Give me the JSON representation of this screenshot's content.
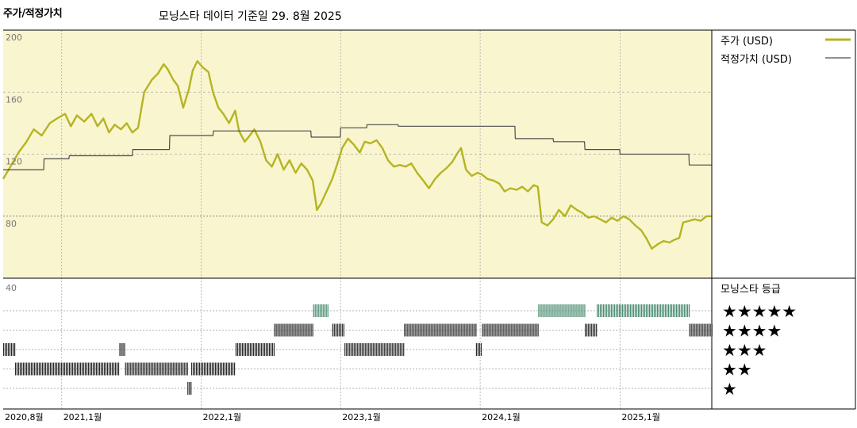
{
  "header": {
    "title": "주가/적정가치",
    "subtitle": "모닝스타 데이터 기준일 29. 8월 2025"
  },
  "colors": {
    "price_line": "#b5b423",
    "fair_value_line": "#4d4d4d",
    "upper_panel_bg": "#f9f5cf",
    "five_star_bar": "#4a8c70",
    "other_star_bar": "#2a2a2a"
  },
  "chart_data": {
    "type": "line",
    "y_ticks": [
      "200",
      "160",
      "120",
      "80",
      "40"
    ],
    "ylim": [
      40,
      200
    ],
    "date_labels": [
      "2020,8월",
      "2021,1월",
      "2022,1월",
      "2023,1월",
      "2024,1월",
      "2025,1월"
    ],
    "legend": {
      "price_label": "주가 (USD)",
      "fair_value_label": "적정가치 (USD)"
    },
    "series": [
      {
        "name": "주가 (USD)",
        "points": [
          [
            "2020-08-01",
            104
          ],
          [
            "2020-08-20",
            112
          ],
          [
            "2020-09-10",
            121
          ],
          [
            "2020-10-01",
            128
          ],
          [
            "2020-10-20",
            136
          ],
          [
            "2020-11-10",
            132
          ],
          [
            "2020-12-01",
            140
          ],
          [
            "2020-12-20",
            143
          ],
          [
            "2021-01-10",
            146
          ],
          [
            "2021-01-25",
            138
          ],
          [
            "2021-02-10",
            145
          ],
          [
            "2021-03-01",
            141
          ],
          [
            "2021-03-20",
            146
          ],
          [
            "2021-04-05",
            138
          ],
          [
            "2021-04-20",
            143
          ],
          [
            "2021-05-05",
            134
          ],
          [
            "2021-05-20",
            139
          ],
          [
            "2021-06-05",
            136
          ],
          [
            "2021-06-20",
            140
          ],
          [
            "2021-07-05",
            134
          ],
          [
            "2021-07-20",
            137
          ],
          [
            "2021-08-05",
            160
          ],
          [
            "2021-08-25",
            168
          ],
          [
            "2021-09-10",
            172
          ],
          [
            "2021-09-25",
            178
          ],
          [
            "2021-10-05",
            175
          ],
          [
            "2021-10-20",
            168
          ],
          [
            "2021-11-01",
            164
          ],
          [
            "2021-11-15",
            150
          ],
          [
            "2021-11-30",
            162
          ],
          [
            "2021-12-10",
            174
          ],
          [
            "2021-12-22",
            180
          ],
          [
            "2022-01-05",
            176
          ],
          [
            "2022-01-20",
            173
          ],
          [
            "2022-02-01",
            160
          ],
          [
            "2022-02-15",
            150
          ],
          [
            "2022-02-28",
            146
          ],
          [
            "2022-03-15",
            140
          ],
          [
            "2022-03-31",
            148
          ],
          [
            "2022-04-10",
            135
          ],
          [
            "2022-04-25",
            128
          ],
          [
            "2022-05-05",
            131
          ],
          [
            "2022-05-20",
            136
          ],
          [
            "2022-06-05",
            128
          ],
          [
            "2022-06-20",
            116
          ],
          [
            "2022-07-05",
            112
          ],
          [
            "2022-07-20",
            120
          ],
          [
            "2022-08-05",
            110
          ],
          [
            "2022-08-20",
            116
          ],
          [
            "2022-09-05",
            108
          ],
          [
            "2022-09-20",
            114
          ],
          [
            "2022-10-05",
            110
          ],
          [
            "2022-10-20",
            103
          ],
          [
            "2022-10-31",
            84
          ],
          [
            "2022-11-10",
            88
          ],
          [
            "2022-11-25",
            96
          ],
          [
            "2022-12-10",
            104
          ],
          [
            "2022-12-25",
            115
          ],
          [
            "2023-01-05",
            124
          ],
          [
            "2023-01-20",
            130
          ],
          [
            "2023-02-05",
            126
          ],
          [
            "2023-02-20",
            121
          ],
          [
            "2023-03-05",
            128
          ],
          [
            "2023-03-20",
            127
          ],
          [
            "2023-04-05",
            129
          ],
          [
            "2023-04-20",
            124
          ],
          [
            "2023-05-05",
            116
          ],
          [
            "2023-05-20",
            112
          ],
          [
            "2023-06-05",
            113
          ],
          [
            "2023-06-20",
            112
          ],
          [
            "2023-07-05",
            114
          ],
          [
            "2023-07-20",
            108
          ],
          [
            "2023-08-05",
            103
          ],
          [
            "2023-08-20",
            98
          ],
          [
            "2023-09-05",
            104
          ],
          [
            "2023-09-20",
            108
          ],
          [
            "2023-10-05",
            111
          ],
          [
            "2023-10-20",
            115
          ],
          [
            "2023-11-01",
            120
          ],
          [
            "2023-11-12",
            124
          ],
          [
            "2023-11-25",
            110
          ],
          [
            "2023-12-10",
            106
          ],
          [
            "2023-12-25",
            108
          ],
          [
            "2024-01-05",
            107
          ],
          [
            "2024-01-20",
            104
          ],
          [
            "2024-02-05",
            103
          ],
          [
            "2024-02-20",
            101
          ],
          [
            "2024-03-05",
            96
          ],
          [
            "2024-03-20",
            98
          ],
          [
            "2024-04-05",
            97
          ],
          [
            "2024-04-20",
            99
          ],
          [
            "2024-05-05",
            96
          ],
          [
            "2024-05-20",
            100
          ],
          [
            "2024-05-31",
            99
          ],
          [
            "2024-06-10",
            76
          ],
          [
            "2024-06-25",
            74
          ],
          [
            "2024-07-10",
            78
          ],
          [
            "2024-07-25",
            84
          ],
          [
            "2024-08-10",
            80
          ],
          [
            "2024-08-25",
            87
          ],
          [
            "2024-09-10",
            84
          ],
          [
            "2024-09-25",
            82
          ],
          [
            "2024-10-10",
            79
          ],
          [
            "2024-10-25",
            80
          ],
          [
            "2024-11-10",
            78
          ],
          [
            "2024-11-25",
            76
          ],
          [
            "2024-12-10",
            79
          ],
          [
            "2024-12-25",
            77
          ],
          [
            "2025-01-10",
            80
          ],
          [
            "2025-01-25",
            78
          ],
          [
            "2025-02-10",
            74
          ],
          [
            "2025-02-25",
            71
          ],
          [
            "2025-03-10",
            66
          ],
          [
            "2025-03-25",
            59
          ],
          [
            "2025-04-10",
            62
          ],
          [
            "2025-04-25",
            64
          ],
          [
            "2025-05-10",
            63
          ],
          [
            "2025-05-25",
            65
          ],
          [
            "2025-06-05",
            66
          ],
          [
            "2025-06-15",
            76
          ],
          [
            "2025-07-01",
            77
          ],
          [
            "2025-07-15",
            78
          ],
          [
            "2025-07-31",
            77
          ],
          [
            "2025-08-15",
            80
          ],
          [
            "2025-08-29",
            80
          ]
        ]
      },
      {
        "name": "적정가치 (USD)",
        "points": [
          [
            "2020-08-01",
            110
          ],
          [
            "2020-11-15",
            110
          ],
          [
            "2020-11-16",
            117
          ],
          [
            "2021-01-20",
            117
          ],
          [
            "2021-01-21",
            119
          ],
          [
            "2021-07-05",
            119
          ],
          [
            "2021-07-06",
            123
          ],
          [
            "2021-10-10",
            123
          ],
          [
            "2021-10-11",
            132
          ],
          [
            "2022-02-01",
            132
          ],
          [
            "2022-02-02",
            135
          ],
          [
            "2022-03-31",
            135
          ],
          [
            "2022-04-01",
            135
          ],
          [
            "2022-10-15",
            135
          ],
          [
            "2022-10-16",
            131
          ],
          [
            "2022-12-31",
            131
          ],
          [
            "2023-01-01",
            137
          ],
          [
            "2023-03-10",
            137
          ],
          [
            "2023-03-11",
            139
          ],
          [
            "2023-05-31",
            139
          ],
          [
            "2023-06-01",
            138
          ],
          [
            "2024-04-01",
            138
          ],
          [
            "2024-04-02",
            130
          ],
          [
            "2024-07-10",
            130
          ],
          [
            "2024-07-11",
            128
          ],
          [
            "2024-09-30",
            128
          ],
          [
            "2024-10-01",
            123
          ],
          [
            "2024-12-31",
            123
          ],
          [
            "2025-01-01",
            120
          ],
          [
            "2025-06-30",
            120
          ],
          [
            "2025-07-01",
            113
          ],
          [
            "2025-08-29",
            113
          ]
        ]
      }
    ],
    "star_rating": {
      "title": "모닝스타 등급",
      "labels": [
        "★★★★★",
        "★★★★",
        "★★★",
        "★★",
        "★"
      ],
      "periods": [
        {
          "start": "2020-08-01",
          "end": "2020-08-31",
          "stars": 3
        },
        {
          "start": "2020-09-01",
          "end": "2021-05-31",
          "stars": 2
        },
        {
          "start": "2021-06-01",
          "end": "2021-06-15",
          "stars": 3
        },
        {
          "start": "2021-06-16",
          "end": "2021-11-25",
          "stars": 2
        },
        {
          "start": "2021-11-26",
          "end": "2021-12-05",
          "stars": 1
        },
        {
          "start": "2021-12-06",
          "end": "2022-03-31",
          "stars": 2
        },
        {
          "start": "2022-04-01",
          "end": "2022-07-10",
          "stars": 3
        },
        {
          "start": "2022-07-11",
          "end": "2022-10-20",
          "stars": 4
        },
        {
          "start": "2022-10-21",
          "end": "2022-11-30",
          "stars": 5
        },
        {
          "start": "2022-12-10",
          "end": "2023-01-10",
          "stars": 4
        },
        {
          "start": "2023-01-11",
          "end": "2023-06-15",
          "stars": 3
        },
        {
          "start": "2023-06-16",
          "end": "2023-12-20",
          "stars": 4
        },
        {
          "start": "2023-12-21",
          "end": "2024-01-05",
          "stars": 3
        },
        {
          "start": "2024-01-06",
          "end": "2024-05-31",
          "stars": 4
        },
        {
          "start": "2024-06-01",
          "end": "2024-09-30",
          "stars": 5
        },
        {
          "start": "2024-10-01",
          "end": "2024-10-31",
          "stars": 4
        },
        {
          "start": "2024-11-01",
          "end": "2025-06-30",
          "stars": 5
        },
        {
          "start": "2025-07-01",
          "end": "2025-08-29",
          "stars": 4
        }
      ]
    },
    "grid": true,
    "legend_position": "right"
  }
}
